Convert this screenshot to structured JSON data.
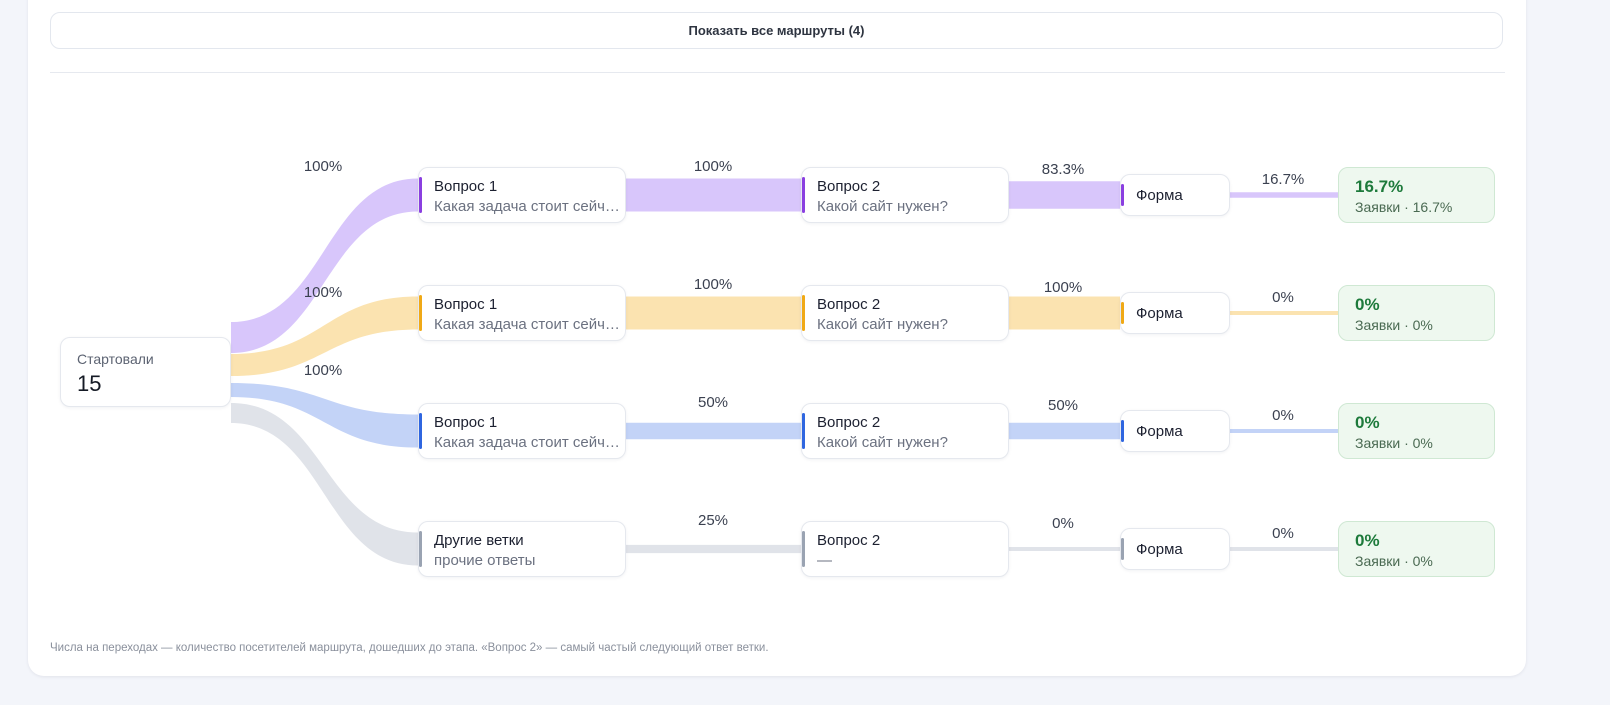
{
  "header": {
    "show_routes_label": "Показать все маршруты (4)"
  },
  "start": {
    "label": "Стартовали",
    "value": "15"
  },
  "rows": [
    {
      "color": "#8a3fe0",
      "flow_color": "#d8c6fb",
      "q1": {
        "title": "Вопрос 1",
        "subtitle": "Какая задача стоит сейчас?"
      },
      "q2": {
        "title": "Вопрос 2",
        "subtitle": "Какой сайт нужен?"
      },
      "form": {
        "title": "Форма"
      },
      "result": {
        "pct": "16.7%",
        "sub": "Заявки · 16.7%"
      },
      "labels": {
        "start": "100%",
        "q1_q2": "100%",
        "q2_form": "83.3%",
        "form_res": "16.7%"
      },
      "flows": {
        "start": 1.0,
        "q1_q2": 1.0,
        "q2_form": 0.833,
        "form_res": 0.167
      }
    },
    {
      "color": "#f0a916",
      "flow_color": "#fbe3b0",
      "q1": {
        "title": "Вопрос 1",
        "subtitle": "Какая задача стоит сейчас?"
      },
      "q2": {
        "title": "Вопрос 2",
        "subtitle": "Какой сайт нужен?"
      },
      "form": {
        "title": "Форма"
      },
      "result": {
        "pct": "0%",
        "sub": "Заявки · 0%"
      },
      "labels": {
        "start": "100%",
        "q1_q2": "100%",
        "q2_form": "100%",
        "form_res": "0%"
      },
      "flows": {
        "start": 1.0,
        "q1_q2": 1.0,
        "q2_form": 1.0,
        "form_res": 0.0
      }
    },
    {
      "color": "#2f66e0",
      "flow_color": "#c3d3f7",
      "q1": {
        "title": "Вопрос 1",
        "subtitle": "Какая задача стоит сейчас?"
      },
      "q2": {
        "title": "Вопрос 2",
        "subtitle": "Какой сайт нужен?"
      },
      "form": {
        "title": "Форма"
      },
      "result": {
        "pct": "0%",
        "sub": "Заявки · 0%"
      },
      "labels": {
        "start": "100%",
        "q1_q2": "50%",
        "q2_form": "50%",
        "form_res": "0%"
      },
      "flows": {
        "start": 1.0,
        "q1_q2": 0.5,
        "q2_form": 0.5,
        "form_res": 0.0
      }
    },
    {
      "color": "#9aa3b2",
      "flow_color": "#e0e3e9",
      "q1": {
        "title": "Другие ветки",
        "subtitle": "прочие ответы"
      },
      "q2": {
        "title": "Вопрос 2",
        "subtitle": "—"
      },
      "form": {
        "title": "Форма"
      },
      "result": {
        "pct": "0%",
        "sub": "Заявки · 0%"
      },
      "labels": {
        "start": "",
        "q1_q2": "25%",
        "q2_form": "0%",
        "form_res": "0%"
      },
      "flows": {
        "start": 1.0,
        "q1_q2": 0.25,
        "q2_form": 0.0,
        "form_res": 0.0
      }
    }
  ],
  "footnote": "Числа на переходах — количество посетителей маршрута, дошедших до этапа. «Вопрос 2» — самый частый следующий ответ ветки."
}
